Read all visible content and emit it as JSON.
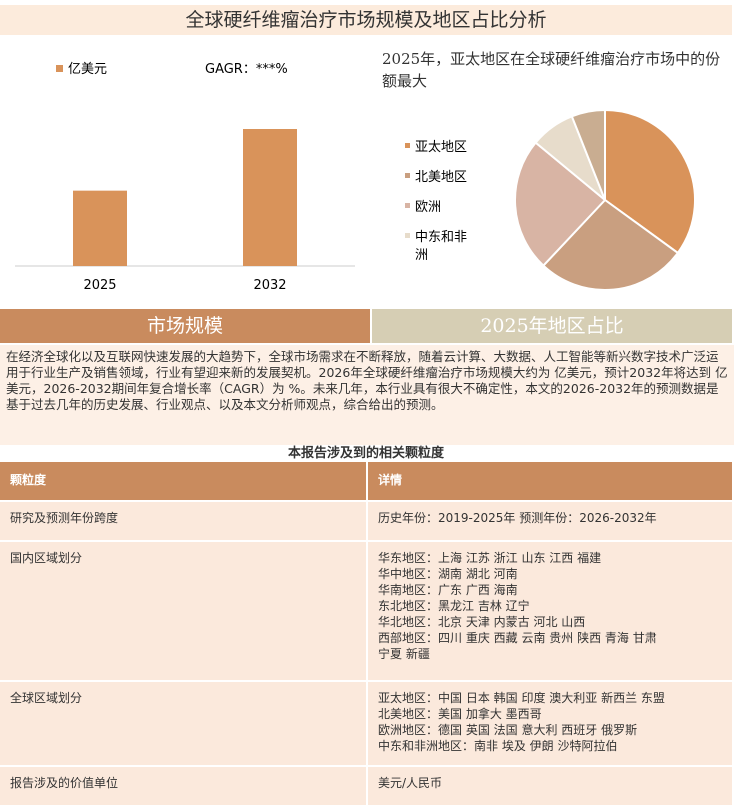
{
  "title": "全球硬纤维瘤治疗市场规模及地区占比分析",
  "chart_data": [
    {
      "type": "bar",
      "categories": [
        "2025",
        "2032"
      ],
      "series": [
        {
          "name": "亿美元",
          "color": "#d9935a",
          "values": [
            55,
            100
          ]
        }
      ],
      "annotation": "GAGR：***%"
    },
    {
      "type": "pie",
      "title": "2025年，亚太地区在全球硬纤维瘤治疗市场中的份额最大",
      "categories": [
        "亚太地区",
        "北美地区",
        "欧洲",
        "中东和非洲",
        null
      ],
      "values": [
        35,
        27,
        24,
        8,
        6
      ],
      "colors": [
        "#d9935a",
        "#c99f80",
        "#d8b4a4",
        "#e7dccb",
        "#c9ad91"
      ]
    }
  ],
  "sections": [
    "市场规模",
    "2025年地区占比"
  ],
  "intro": "在经济全球化以及互联网快速发展的大趋势下，全球市场需求在不断释放，随着云计算、大数据、人工智能等新兴数字技术广泛运用于行业生产及销售领域，行业有望迎来新的发展契机。2026年全球硬纤维瘤治疗市场规模大约为 亿美元，预计2032年将达到 亿美元，2026-2032期间年复合增长率（CAGR）为 %。未来几年，本行业具有很大不确定性，本文的2026-2032年的预测数据是基于过去几年的历史发展、行业观点、以及本文分析师观点，综合给出的预测。",
  "table": {
    "title": "本报告涉及到的相关颗粒度",
    "header": [
      "颗粒度",
      "详情"
    ],
    "rows": [
      [
        "研究及预测年份跨度",
        [
          "历史年份：2019-2025年 预测年份：2026-2032年"
        ]
      ],
      [
        "国内区域划分",
        [
          "华东地区：上海  江苏  浙江  山东  江西  福建",
          "华中地区：湖南  湖北  河南",
          "华南地区：广东  广西  海南",
          "东北地区：黑龙江  吉林  辽宁",
          "华北地区：北京  天津  内蒙古  河北  山西",
          "西部地区：四川  重庆  西藏  云南  贵州  陕西  青海  甘肃",
          "宁夏  新疆"
        ]
      ],
      [
        "全球区域划分",
        [
          "亚太地区：中国  日本  韩国  印度  澳大利亚  新西兰  东盟",
          "北美地区：美国  加拿大  墨西哥",
          "欧洲地区：德国  英国  法国  意大利  西班牙  俄罗斯",
          "中东和非洲地区：南非  埃及  伊朗  沙特阿拉伯"
        ]
      ],
      [
        "报告涉及的价值单位",
        [
          "美元/人民币"
        ]
      ]
    ]
  }
}
